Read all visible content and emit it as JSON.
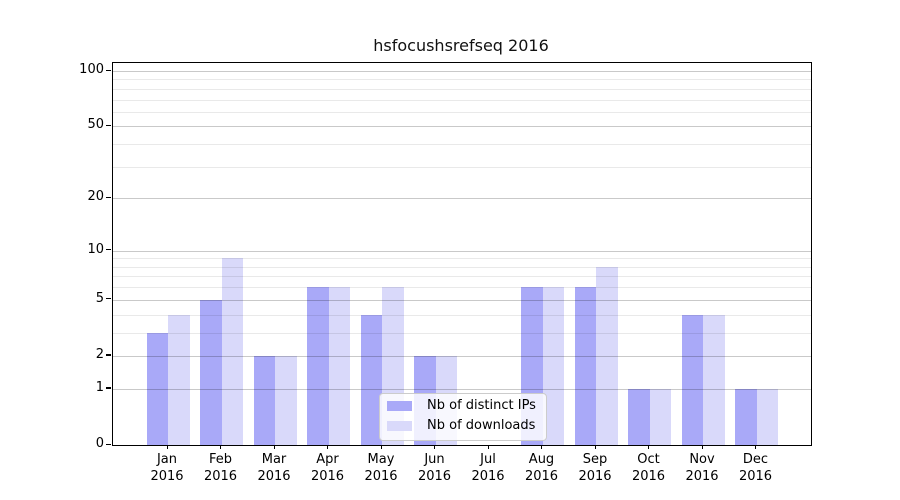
{
  "chart_data": {
    "type": "bar",
    "title": "hsfocushsrefseq 2016",
    "categories": [
      "Jan",
      "Feb",
      "Mar",
      "Apr",
      "May",
      "Jun",
      "Jul",
      "Aug",
      "Sep",
      "Oct",
      "Nov",
      "Dec"
    ],
    "year_label": "2016",
    "series": [
      {
        "name": "Nb of distinct IPs",
        "color": "#a9a9f8",
        "values": [
          3,
          5,
          2,
          6,
          4,
          2,
          0,
          6,
          6,
          1,
          4,
          1
        ]
      },
      {
        "name": "Nb of downloads",
        "color": "#d9d9fa",
        "values": [
          4,
          9,
          2,
          6,
          6,
          2,
          0,
          6,
          8,
          1,
          4,
          1
        ]
      }
    ],
    "yscale": "log10(1+value)",
    "yticks": [
      0,
      1,
      2,
      5,
      10,
      20,
      50,
      100
    ],
    "ytick_labels": [
      "0",
      "1",
      "2",
      "5",
      "10",
      "20",
      "50",
      "100"
    ],
    "minor_gridlines": [
      3,
      4,
      6,
      7,
      8,
      9,
      30,
      40,
      60,
      70,
      80,
      90
    ],
    "ylim": [
      0,
      110
    ],
    "xlabel": "",
    "ylabel": "",
    "grid": true,
    "legend_position": "lower center",
    "colors": {
      "bar_distinct_ips": "#a9a9f8",
      "bar_downloads": "#d9d9fa",
      "grid_major": "#cfcfcf",
      "grid_minor": "#ececec",
      "axis": "#000000",
      "legend_border": "#cccccc"
    }
  }
}
